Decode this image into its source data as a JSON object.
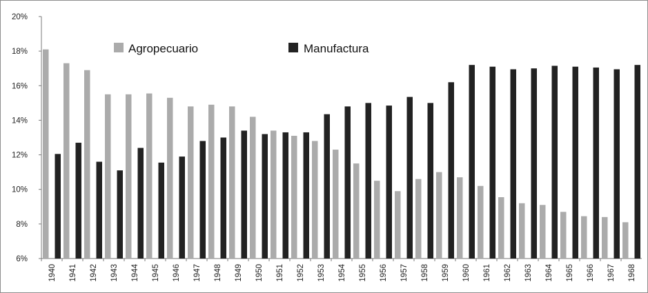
{
  "chart_data": {
    "type": "bar",
    "categories": [
      "1940",
      "1941",
      "1942",
      "1943",
      "1944",
      "1945",
      "1946",
      "1947",
      "1948",
      "1949",
      "1950",
      "1951",
      "1952",
      "1953",
      "1954",
      "1955",
      "1956",
      "1957",
      "1958",
      "1959",
      "1960",
      "1961",
      "1962",
      "1963",
      "1964",
      "1965",
      "1966",
      "1967",
      "1968"
    ],
    "series": [
      {
        "name": "Agropecuario",
        "color": "#ababab",
        "values": [
          18.1,
          17.3,
          16.9,
          15.5,
          15.5,
          15.55,
          15.3,
          14.8,
          14.9,
          14.8,
          14.2,
          13.4,
          13.1,
          12.8,
          12.3,
          11.5,
          10.5,
          9.9,
          10.6,
          11.0,
          10.7,
          10.2,
          9.55,
          9.2,
          9.1,
          8.7,
          8.45,
          8.4,
          8.1
        ]
      },
      {
        "name": "Manufactura",
        "color": "#222222",
        "values": [
          12.05,
          12.7,
          11.6,
          11.1,
          12.4,
          11.55,
          11.9,
          12.8,
          13.0,
          13.4,
          13.2,
          13.3,
          13.3,
          14.35,
          14.8,
          15.0,
          14.85,
          15.35,
          15.0,
          16.2,
          17.2,
          17.1,
          16.95,
          17.0,
          17.15,
          17.1,
          17.05,
          16.95,
          17.2
        ]
      }
    ],
    "ylim": [
      6,
      20
    ],
    "yticks": [
      "6%",
      "8%",
      "10%",
      "12%",
      "14%",
      "16%",
      "18%",
      "20%"
    ],
    "title": "",
    "xlabel": "",
    "ylabel": "",
    "grid": false,
    "legend_position": "top"
  }
}
